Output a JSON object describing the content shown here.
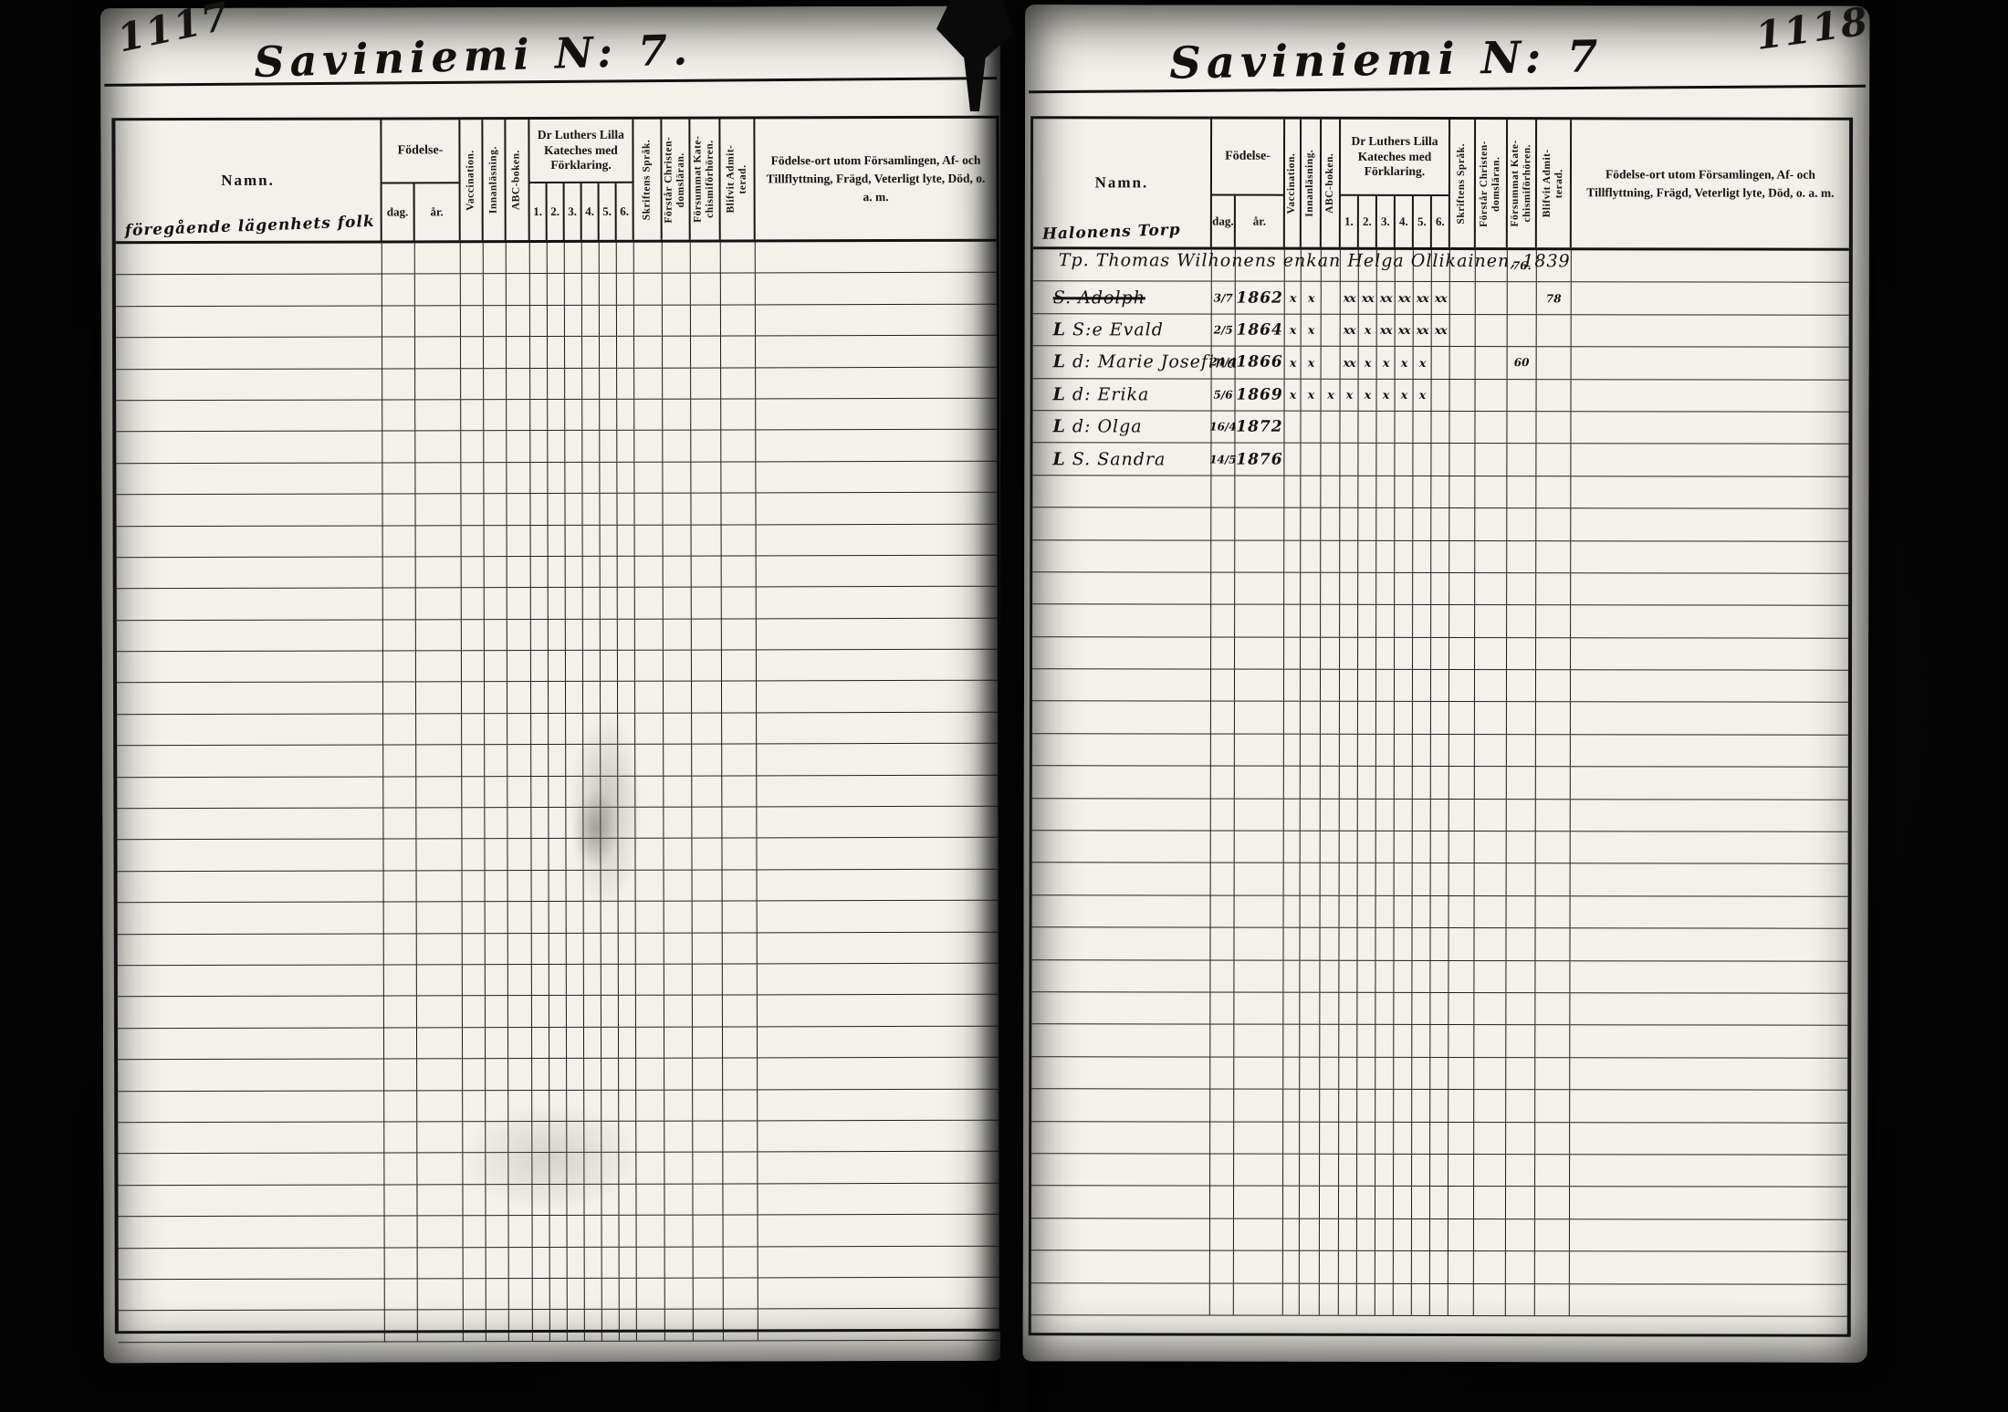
{
  "document": {
    "headers": {
      "namn": "Namn.",
      "fodelse": "Födelse-",
      "dag": "dag.",
      "ar": "år.",
      "vaccination": "Vaccination.",
      "innanlasning": "Innanläsning.",
      "abc_boken": "ABC-boken.",
      "katekes": "Dr Luthers Lilla Kateches med Förklaring.",
      "katekes_cols": [
        "1.",
        "2.",
        "3.",
        "4.",
        "5.",
        "6."
      ],
      "skriftens_sprak": "Skriftens Språk.",
      "forstar_christendomslaran": "Förstår Christen-\ndomsläran.",
      "forsummat_katechismiforhoren": "Försummat Kate-\nchismiförhören.",
      "blifvit_admitterad": "Blifvit Admit-\nterad.",
      "notes": "Födelse-ort utom Församlingen, Af- och Tillflyttning, Frägd, Veterligt lyte, Död, o. a. m."
    },
    "left_page": {
      "page_number": "1117",
      "title": "Saviniemi N: 7.",
      "namn_annotation": "föregående lägenhets folk",
      "rows": [],
      "empty_row_count": 35
    },
    "right_page": {
      "page_number": "1118",
      "title": "Saviniemi N: 7",
      "namn_annotation": "Halonens Torp",
      "rows": [
        {
          "name": "Tp. Thomas Wilhonens enkan Helga Ollikainen, 1839",
          "span_all": true,
          "forsummat": "76."
        },
        {
          "name": "S. Adolph",
          "struck": true,
          "dag": "3/7",
          "ar": "1862",
          "marks": [
            "x",
            "x",
            "",
            "xx",
            "xx",
            "xx",
            "xx",
            "xx",
            "xx"
          ],
          "admitterad": "78"
        },
        {
          "prefix": "L",
          "name": "S:e Evald",
          "dag": "2/5",
          "ar": "1864",
          "marks": [
            "x",
            "x",
            "",
            "xx",
            "x",
            "xx",
            "xx",
            "xx",
            "xx"
          ]
        },
        {
          "prefix": "L",
          "name": "d: Marie Josefina",
          "dag": "24/4",
          "ar": "1866",
          "marks": [
            "x",
            "x",
            "",
            "xx",
            "x",
            "x",
            "x",
            "x",
            ""
          ],
          "forsummat": "60"
        },
        {
          "prefix": "L",
          "name": "d: Erika",
          "dag": "5/6",
          "ar": "1869",
          "marks": [
            "x",
            "x",
            "x",
            "x",
            "x",
            "x",
            "x",
            "x",
            ""
          ]
        },
        {
          "prefix": "L",
          "name": "d: Olga",
          "dag": "16/4",
          "ar": "1872",
          "marks": []
        },
        {
          "prefix": "L",
          "name": "S. Sandra",
          "dag": "14/5",
          "ar": "1876",
          "marks": []
        }
      ],
      "empty_row_count": 26
    }
  }
}
